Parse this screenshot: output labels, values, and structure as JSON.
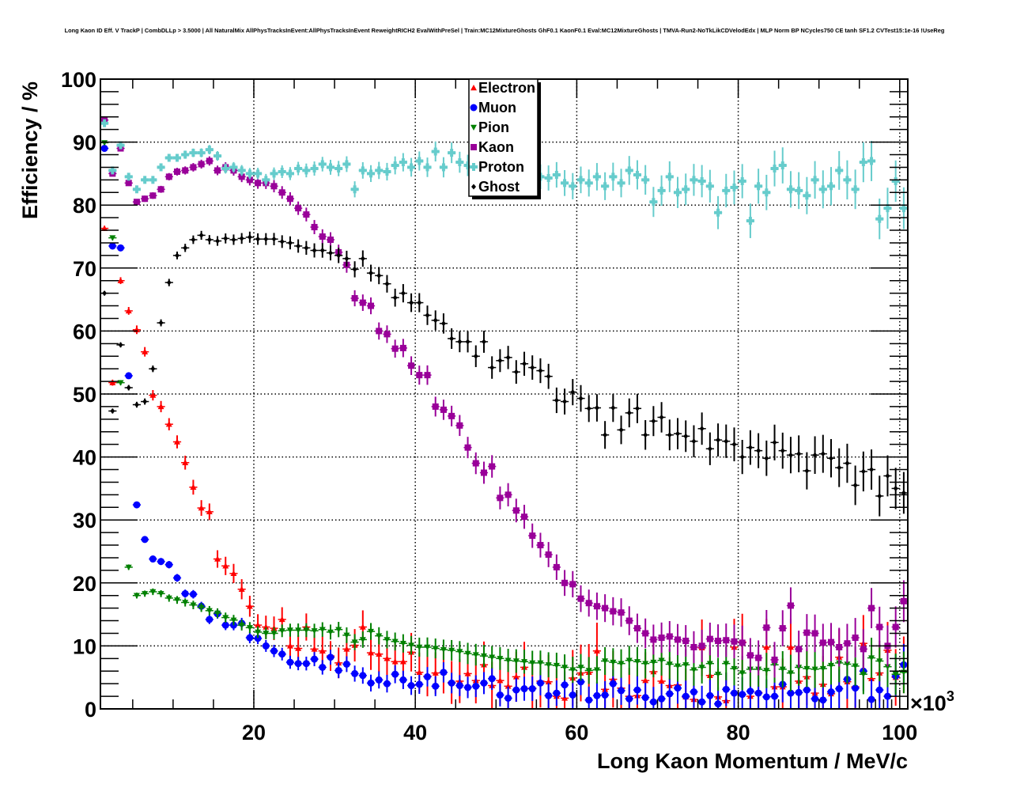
{
  "chart_data": {
    "type": "scatter",
    "title": "Long Kaon ID Eff. V TrackP | CombDLLp > 3.5000 | All NaturalMix AllPhysTracksInEvent:AllPhysTracksInEvent ReweightRICH2 EvalWithPreSel | Train:MC12MixtureGhosts GhF0.1 KaonF0.1 Eval:MC12MixtureGhosts | TMVA-Run2-NoTkLikCDVelodEdx | MLP Norm BP NCycles750 CE tanh SF1.2 CVTest15:1e-16 !UseReg",
    "xlabel": "Long Kaon Momentum / MeV/c",
    "ylabel": "Efficiency / %",
    "x_multiplier_label": "×10",
    "x_multiplier_exp": "3",
    "xlim": [
      1,
      101
    ],
    "ylim": [
      0,
      100
    ],
    "x_ticks": [
      20,
      40,
      60,
      80,
      100
    ],
    "x_tick_labels": [
      "20",
      "40",
      "60",
      "80",
      "100"
    ],
    "y_ticks": [
      0,
      10,
      20,
      30,
      40,
      50,
      60,
      70,
      80,
      90,
      100
    ],
    "y_tick_labels": [
      "0",
      "10",
      "20",
      "30",
      "40",
      "50",
      "60",
      "70",
      "80",
      "90",
      "100"
    ],
    "grid": true,
    "legend_position": "top-center",
    "bin_start": 1,
    "bin_width": 1,
    "series": [
      {
        "name": "Electron",
        "color": "#ff0000",
        "marker": "triangle-up",
        "values": [
          76.3,
          51.8,
          68.0,
          63.2,
          60.2,
          56.7,
          49.8,
          48.0,
          45.2,
          42.4,
          39.1,
          35.2,
          31.9,
          31.3,
          23.8,
          22.7,
          21.5,
          19.0,
          16.3,
          13.3,
          13.0,
          12.8,
          14.2,
          10.0,
          9.6,
          13.0,
          9.5,
          9.2,
          8.4,
          7.3,
          9.5,
          10.1,
          13.0,
          8.9,
          8.7,
          8.0,
          7.5,
          7.5,
          9.0,
          5.8,
          5.2,
          5.7,
          5.8,
          4.2,
          4.4,
          5.6,
          4.5,
          7.0,
          3.7,
          4.5,
          3.6,
          5.1,
          6.6,
          3.3,
          4.4,
          4.3,
          2.0,
          1.7,
          4.9,
          5.7,
          5.8,
          9.2,
          3.1,
          4.7,
          3.3,
          2.0,
          2.1,
          4.5,
          5.9,
          4.4,
          3.7,
          3.8,
          1.9,
          1.5,
          9.7,
          5.3,
          1.9,
          1.3,
          9.8,
          10.6,
          2.0,
          2.6,
          9.8,
          3.5,
          3.5,
          9.8,
          4.4,
          5.1,
          2.5,
          3.9,
          2.4,
          8.2,
          4.3,
          3.5,
          10.4,
          4.8,
          5.7,
          9.3,
          5.0,
          7.0
        ]
      },
      {
        "name": "Muon",
        "color": "#0000ff",
        "marker": "circle",
        "values": [
          89.0,
          73.5,
          73.2,
          52.9,
          32.4,
          26.9,
          23.8,
          23.4,
          22.9,
          20.8,
          18.3,
          18.2,
          16.3,
          14.2,
          15.1,
          13.3,
          13.3,
          13.6,
          11.3,
          11.2,
          10.0,
          9.2,
          8.7,
          7.4,
          7.2,
          7.2,
          7.9,
          6.6,
          8.2,
          6.1,
          7.1,
          5.6,
          5.3,
          4.1,
          4.6,
          4.0,
          5.5,
          4.6,
          3.7,
          3.9,
          5.1,
          3.6,
          5.8,
          4.1,
          3.7,
          3.4,
          3.6,
          4.1,
          4.8,
          2.2,
          1.7,
          3.0,
          3.2,
          3.2,
          4.1,
          2.1,
          2.5,
          3.8,
          2.2,
          4.3,
          1.4,
          2.1,
          2.2,
          4.0,
          2.9,
          1.6,
          3.0,
          1.8,
          1.1,
          1.6,
          2.4,
          3.3,
          2.0,
          2.7,
          1.1,
          2.1,
          0.8,
          3.1,
          2.5,
          2.3,
          2.8,
          2.5,
          1.9,
          2.0,
          3.9,
          2.5,
          2.6,
          3.0,
          1.6,
          1.4,
          2.7,
          3.2,
          4.7,
          3.3,
          6.0,
          1.5,
          3.0,
          2.0,
          5.2,
          7.0
        ]
      },
      {
        "name": "Pion",
        "color": "#008000",
        "marker": "triangle-down",
        "values": [
          89.9,
          74.8,
          51.8,
          22.5,
          18.0,
          18.3,
          18.6,
          18.3,
          17.6,
          17.3,
          16.9,
          16.5,
          16.1,
          15.6,
          15.2,
          14.5,
          14.1,
          13.3,
          12.9,
          12.2,
          12.0,
          12.0,
          12.4,
          12.5,
          12.5,
          12.5,
          12.4,
          12.6,
          12.2,
          12.6,
          11.7,
          10.6,
          11.0,
          12.3,
          11.6,
          11.0,
          10.7,
          10.4,
          10.1,
          9.8,
          9.8,
          9.6,
          9.4,
          9.3,
          9.1,
          8.8,
          8.6,
          8.4,
          8.2,
          8.0,
          7.7,
          7.6,
          7.5,
          7.3,
          7.3,
          7.0,
          6.9,
          6.6,
          6.2,
          6.6,
          6.1,
          6.2,
          7.6,
          7.4,
          7.2,
          7.7,
          7.5,
          7.2,
          7.4,
          7.7,
          7.1,
          6.8,
          7.0,
          6.2,
          6.6,
          7.2,
          5.5,
          7.2,
          6.4,
          5.7,
          6.3,
          6.3,
          6.1,
          7.0,
          6.3,
          5.7,
          6.6,
          6.4,
          6.3,
          6.4,
          6.9,
          7.3,
          7.1,
          6.8,
          5.5,
          8.1,
          7.6,
          6.7,
          5.5,
          5.8
        ]
      },
      {
        "name": "Kaon",
        "color": "#990099",
        "marker": "square",
        "values": [
          93.5,
          85.0,
          89.0,
          83.5,
          80.5,
          81.0,
          81.5,
          82.5,
          84.5,
          85.3,
          85.5,
          86.0,
          86.5,
          87.0,
          85.5,
          86.0,
          85.5,
          84.5,
          84.0,
          83.5,
          83.5,
          83.0,
          82.0,
          81.0,
          79.5,
          78.5,
          76.5,
          75.0,
          74.5,
          72.5,
          70.5,
          65.2,
          64.5,
          64.0,
          60.0,
          59.5,
          57.2,
          57.3,
          54.5,
          53.0,
          53.0,
          48.0,
          47.5,
          46.5,
          45.0,
          41.5,
          39.0,
          37.5,
          38.5,
          33.5,
          34.0,
          31.5,
          30.5,
          27.5,
          26.0,
          24.5,
          22.5,
          20.0,
          19.8,
          17.5,
          16.8,
          16.3,
          16.0,
          15.5,
          15.3,
          14.0,
          12.8,
          12.0,
          11.0,
          11.3,
          11.5,
          11.0,
          10.8,
          9.8,
          10.0,
          11.1,
          10.8,
          10.9,
          10.7,
          10.5,
          8.5,
          8.1,
          12.9,
          7.8,
          12.8,
          16.4,
          9.5,
          12.1,
          12.0,
          10.5,
          10.6,
          9.8,
          10.4,
          11.3,
          9.5,
          16.0,
          13.0,
          10.0,
          13.0,
          17.1
        ]
      },
      {
        "name": "Proton",
        "color": "#66cccc",
        "marker": "cross",
        "values": [
          93.0,
          85.5,
          89.5,
          84.5,
          82.5,
          84.0,
          84.0,
          86.0,
          87.5,
          87.5,
          88.0,
          88.3,
          88.3,
          88.8,
          87.8,
          85.8,
          86.0,
          85.5,
          85.0,
          85.0,
          84.0,
          85.0,
          85.3,
          85.0,
          85.8,
          85.5,
          85.8,
          86.5,
          86.0,
          85.8,
          86.5,
          82.5,
          85.5,
          85.0,
          85.5,
          85.3,
          86.3,
          86.8,
          86.0,
          87.0,
          86.0,
          88.5,
          86.0,
          88.3,
          86.8,
          86.3,
          87.3,
          86.0,
          87.5,
          86.0,
          86.5,
          85.0,
          87.5,
          85.5,
          84.5,
          84.3,
          84.8,
          83.5,
          83.0,
          84.0,
          83.5,
          84.5,
          83.0,
          84.5,
          83.5,
          85.5,
          84.8,
          84.0,
          80.5,
          82.3,
          84.5,
          82.0,
          82.5,
          84.0,
          83.8,
          83.0,
          78.8,
          82.3,
          82.8,
          83.8,
          77.5,
          83.0,
          82.0,
          85.8,
          86.3,
          82.5,
          82.3,
          81.5,
          84.0,
          82.5,
          83.0,
          85.5,
          84.0,
          82.5,
          86.8,
          87.0,
          77.8,
          79.5,
          83.8,
          79.5
        ]
      },
      {
        "name": "Ghost",
        "color": "#000000",
        "marker": "diamond",
        "values": [
          66.0,
          47.3,
          57.8,
          51.0,
          48.3,
          48.8,
          54.0,
          61.3,
          67.7,
          72.0,
          73.2,
          74.5,
          75.2,
          74.5,
          74.3,
          74.7,
          74.5,
          74.7,
          74.9,
          74.6,
          74.6,
          74.6,
          74.2,
          74.0,
          73.5,
          73.2,
          72.8,
          72.8,
          72.4,
          72.0,
          71.5,
          69.8,
          71.5,
          69.2,
          68.8,
          67.5,
          65.3,
          66.0,
          64.5,
          64.5,
          62.5,
          61.7,
          61.2,
          58.8,
          58.3,
          58.3,
          56.0,
          58.3,
          54.2,
          55.3,
          55.8,
          53.5,
          54.8,
          54.2,
          53.7,
          52.8,
          49.0,
          48.8,
          50.3,
          49.3,
          47.7,
          47.8,
          43.5,
          47.8,
          44.3,
          47.0,
          47.7,
          43.5,
          45.7,
          46.3,
          43.5,
          43.7,
          43.3,
          42.5,
          44.5,
          41.3,
          42.7,
          42.5,
          42.0,
          40.0,
          41.5,
          41.0,
          39.8,
          42.3,
          41.0,
          40.3,
          40.5,
          37.8,
          40.3,
          40.5,
          39.8,
          38.3,
          39.0,
          35.5,
          37.7,
          38.0,
          33.8,
          37.0,
          35.0,
          34.3
        ]
      }
    ]
  }
}
